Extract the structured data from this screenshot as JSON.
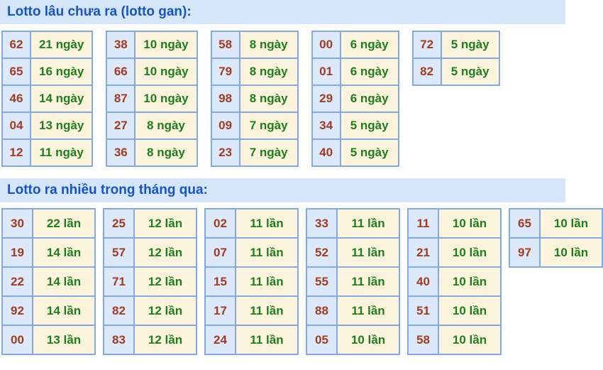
{
  "colors": {
    "header_bg": "#d4e6f8",
    "header_text": "#1553c8",
    "number_text": "#a43a1e",
    "value_text": "#1c7f1c",
    "number_cell_bg": "#dbe9fb",
    "value_cell_bg": "#fcf3dd",
    "table_border": "#82a9e3"
  },
  "sections": [
    {
      "title": "Lotto lâu chưa ra (lotto gan):",
      "unit": "ngày",
      "tables": [
        {
          "rows": [
            {
              "number": "62",
              "value": "21 ngày"
            },
            {
              "number": "65",
              "value": "16 ngày"
            },
            {
              "number": "46",
              "value": "14 ngày"
            },
            {
              "number": "04",
              "value": "13 ngày"
            },
            {
              "number": "12",
              "value": "11 ngày"
            }
          ]
        },
        {
          "rows": [
            {
              "number": "38",
              "value": "10 ngày"
            },
            {
              "number": "66",
              "value": "10 ngày"
            },
            {
              "number": "87",
              "value": "10 ngày"
            },
            {
              "number": "27",
              "value": "8 ngày"
            },
            {
              "number": "36",
              "value": "8 ngày"
            }
          ]
        },
        {
          "rows": [
            {
              "number": "58",
              "value": "8 ngày"
            },
            {
              "number": "79",
              "value": "8 ngày"
            },
            {
              "number": "98",
              "value": "8 ngày"
            },
            {
              "number": "09",
              "value": "7 ngày"
            },
            {
              "number": "23",
              "value": "7 ngày"
            }
          ]
        },
        {
          "rows": [
            {
              "number": "00",
              "value": "6 ngày"
            },
            {
              "number": "01",
              "value": "6 ngày"
            },
            {
              "number": "29",
              "value": "6 ngày"
            },
            {
              "number": "34",
              "value": "5 ngày"
            },
            {
              "number": "40",
              "value": "5 ngày"
            }
          ]
        },
        {
          "rows": [
            {
              "number": "72",
              "value": "5 ngày"
            },
            {
              "number": "82",
              "value": "5 ngày"
            }
          ]
        }
      ]
    },
    {
      "title": "Lotto ra nhiều trong tháng qua:",
      "unit": "lần",
      "tables": [
        {
          "rows": [
            {
              "number": "30",
              "value": "22 lần"
            },
            {
              "number": "19",
              "value": "14 lần"
            },
            {
              "number": "22",
              "value": "14 lần"
            },
            {
              "number": "92",
              "value": "14 lần"
            },
            {
              "number": "00",
              "value": "13 lần"
            }
          ]
        },
        {
          "rows": [
            {
              "number": "25",
              "value": "12 lần"
            },
            {
              "number": "57",
              "value": "12 lần"
            },
            {
              "number": "71",
              "value": "12 lần"
            },
            {
              "number": "82",
              "value": "12 lần"
            },
            {
              "number": "83",
              "value": "12 lần"
            }
          ]
        },
        {
          "rows": [
            {
              "number": "02",
              "value": "11 lần"
            },
            {
              "number": "07",
              "value": "11 lần"
            },
            {
              "number": "15",
              "value": "11 lần"
            },
            {
              "number": "17",
              "value": "11 lần"
            },
            {
              "number": "24",
              "value": "11 lần"
            }
          ]
        },
        {
          "rows": [
            {
              "number": "33",
              "value": "11 lần"
            },
            {
              "number": "52",
              "value": "11 lần"
            },
            {
              "number": "55",
              "value": "11 lần"
            },
            {
              "number": "88",
              "value": "11 lần"
            },
            {
              "number": "05",
              "value": "10 lần"
            }
          ]
        },
        {
          "rows": [
            {
              "number": "11",
              "value": "10 lần"
            },
            {
              "number": "21",
              "value": "10 lần"
            },
            {
              "number": "40",
              "value": "10 lần"
            },
            {
              "number": "51",
              "value": "10 lần"
            },
            {
              "number": "58",
              "value": "10 lần"
            }
          ]
        },
        {
          "rows": [
            {
              "number": "65",
              "value": "10 lần"
            },
            {
              "number": "97",
              "value": "10 lần"
            }
          ]
        }
      ]
    }
  ]
}
